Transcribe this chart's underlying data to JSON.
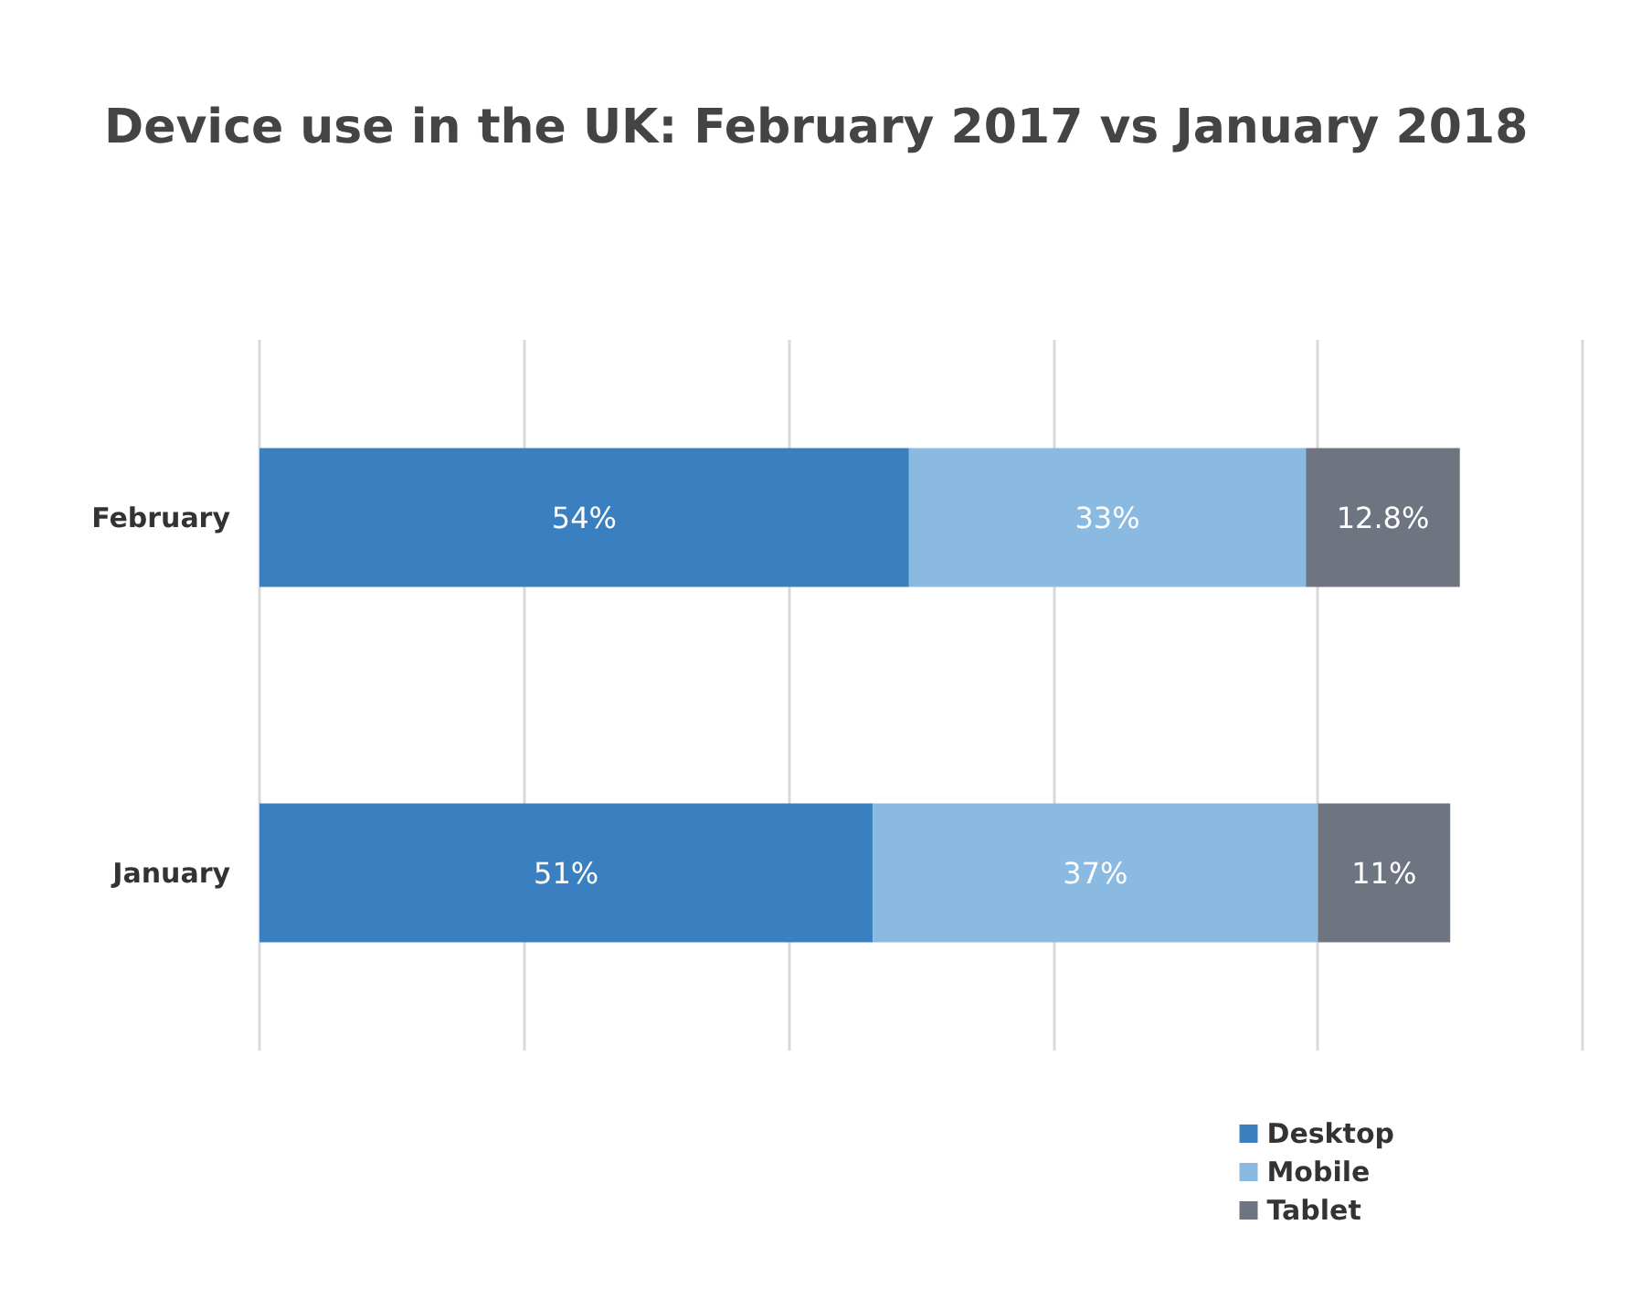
{
  "chart_data": {
    "type": "bar",
    "title": "Device use in the UK: February 2017 vs January 2018",
    "orientation": "horizontal",
    "stacked": true,
    "categories": [
      "February",
      "January"
    ],
    "series": [
      {
        "name": "Desktop",
        "color": "#3a80c0",
        "values": [
          54,
          51
        ],
        "value_labels": [
          "54%",
          "51%"
        ]
      },
      {
        "name": "Mobile",
        "color": "#8ab9e2",
        "values": [
          33,
          37
        ],
        "value_labels": [
          "33%",
          "37%"
        ]
      },
      {
        "name": "Tablet",
        "color": "#6e7580",
        "values": [
          12.8,
          11
        ],
        "value_labels": [
          "12.8%",
          "11%"
        ]
      }
    ],
    "xlim": [
      0,
      110
    ],
    "xticks": [
      {
        "value": 0,
        "label": null
      },
      {
        "value": 22,
        "label": null
      },
      {
        "value": 44,
        "label": null
      },
      {
        "value": 66,
        "label": null
      },
      {
        "value": 88,
        "label": null
      },
      {
        "value": 110,
        "label": null
      }
    ],
    "grid": "x",
    "tick_labels": "y",
    "legend": "bottom right"
  }
}
